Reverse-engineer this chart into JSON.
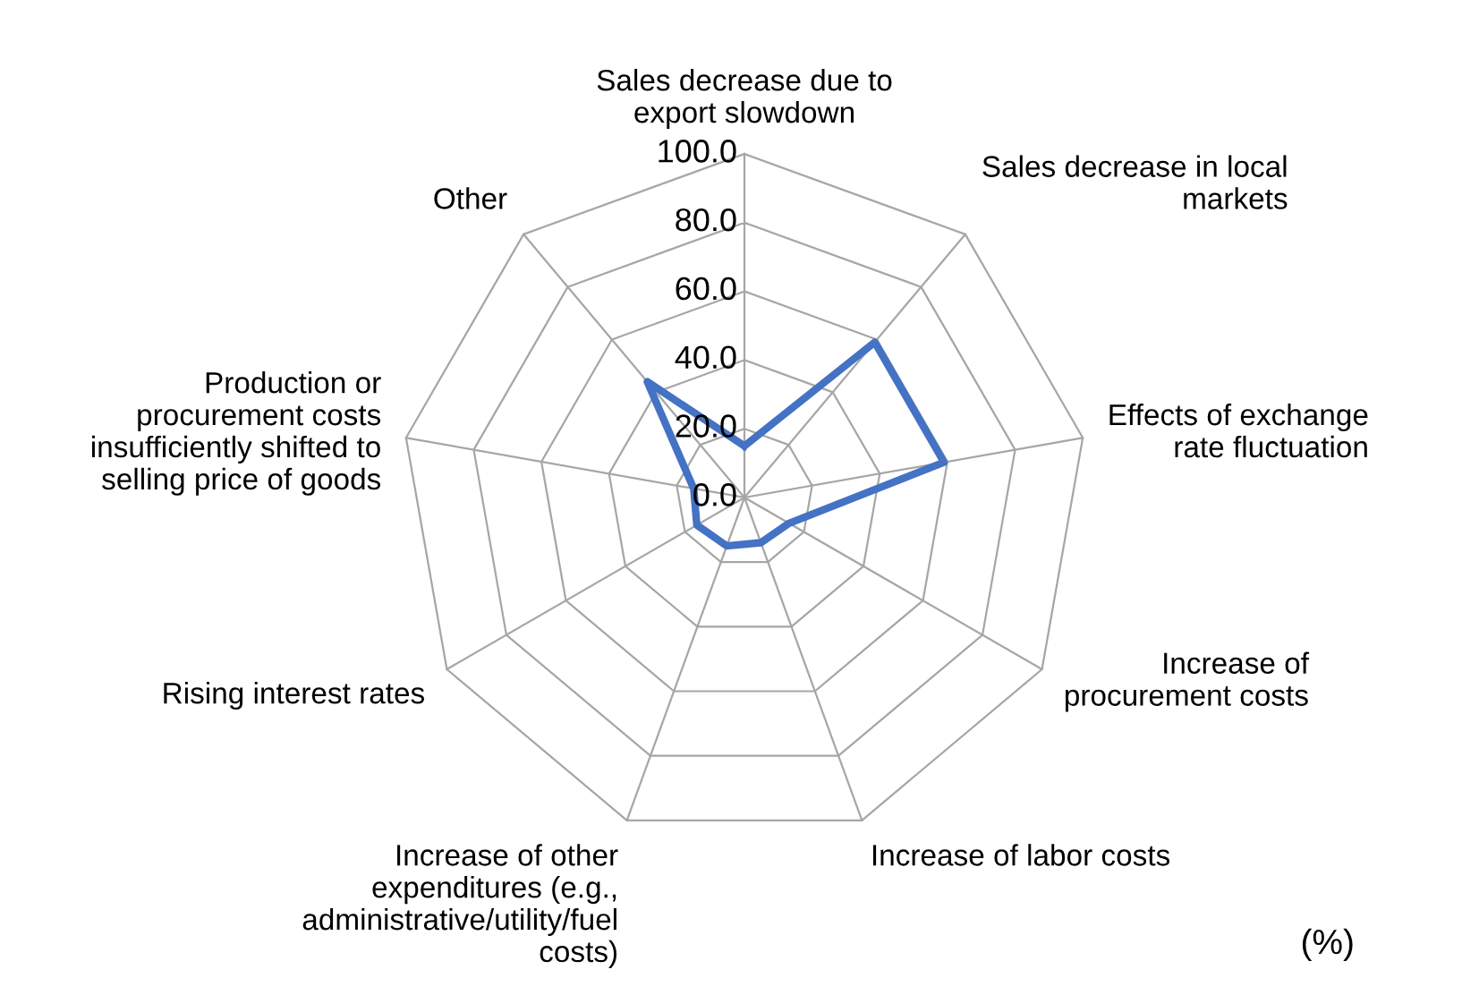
{
  "chart_data": {
    "type": "radar",
    "categories": [
      "Sales decrease due to\nexport slowdown",
      "Sales decrease in local\nmarkets",
      "Effects of exchange\nrate fluctuation",
      "Increase of\nprocurement costs",
      "Increase of labor costs",
      "Increase of other\nexpenditures (e.g.,\nadministrative/utility/fuel\ncosts)",
      "Rising interest rates",
      "Production or\nprocurement costs\ninsufficiently shifted to\nselling price of goods",
      "Other"
    ],
    "series": [
      {
        "color": "#4472c4",
        "values": [
          15,
          59,
          59,
          15,
          14,
          15,
          16,
          15,
          44
        ]
      }
    ],
    "ylim": [
      0,
      100
    ],
    "yticks": [
      {
        "value": 0,
        "label": "0.0"
      },
      {
        "value": 20,
        "label": "20.0"
      },
      {
        "value": 40,
        "label": "40.0"
      },
      {
        "value": 60,
        "label": "60.0"
      },
      {
        "value": 80,
        "label": "80.0"
      },
      {
        "value": 100,
        "label": "100.0"
      }
    ],
    "grid": true,
    "annotations": [
      "(%)"
    ]
  }
}
